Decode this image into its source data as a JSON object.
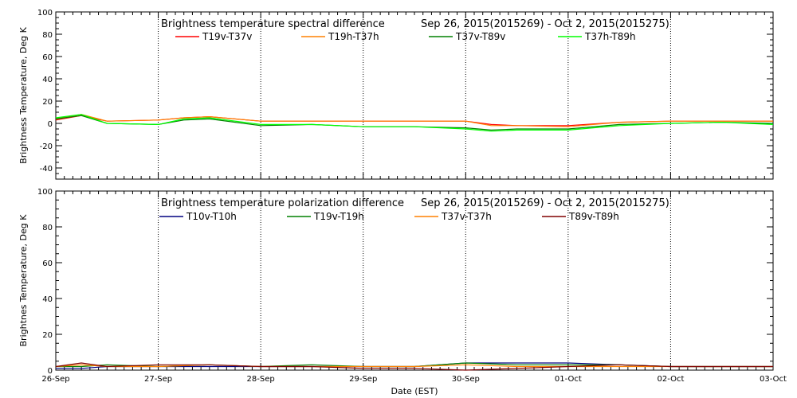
{
  "chart_data": [
    {
      "type": "line",
      "title": "Brightness temperature spectral difference",
      "date_range": "Sep 26, 2015(2015269) - Oct  2, 2015(2015275)",
      "ylabel": "Brightness Temperature, Deg K",
      "xlabel": "",
      "ylim": [
        -50,
        100
      ],
      "yticks": [
        -40,
        -20,
        0,
        20,
        40,
        60,
        80,
        100
      ],
      "xlim": [
        "2015-09-26",
        "2015-10-03"
      ],
      "grid": "vertical dotted lines at each day",
      "legend_placement": "top, below title",
      "series": [
        {
          "name": "T19v-T37v",
          "color": "#ff0000",
          "x": [
            "2015-09-26 00:00",
            "2015-09-26 06:00",
            "2015-09-26 12:00",
            "2015-09-27 00:00",
            "2015-09-27 06:00",
            "2015-09-27 12:00",
            "2015-09-28 00:00",
            "2015-09-28 12:00",
            "2015-09-29 00:00",
            "2015-09-29 12:00",
            "2015-09-30 00:00",
            "2015-09-30 06:00",
            "2015-09-30 12:00",
            "2015-10-01 00:00",
            "2015-10-01 12:00",
            "2015-10-02 00:00",
            "2015-10-02 12:00",
            "2015-10-03 00:00"
          ],
          "values": [
            3,
            7,
            2,
            3,
            5,
            6,
            2,
            2,
            2,
            2,
            2,
            -1,
            -2,
            -2,
            1,
            2,
            2,
            2
          ]
        },
        {
          "name": "T19h-T37h",
          "color": "#ff8000",
          "x": [
            "2015-09-26 00:00",
            "2015-09-26 06:00",
            "2015-09-26 12:00",
            "2015-09-27 00:00",
            "2015-09-27 06:00",
            "2015-09-27 12:00",
            "2015-09-28 00:00",
            "2015-09-28 12:00",
            "2015-09-29 00:00",
            "2015-09-29 12:00",
            "2015-09-30 00:00",
            "2015-09-30 06:00",
            "2015-09-30 12:00",
            "2015-10-01 00:00",
            "2015-10-01 12:00",
            "2015-10-02 00:00",
            "2015-10-02 12:00",
            "2015-10-03 00:00"
          ],
          "values": [
            4,
            8,
            2,
            3,
            5,
            6,
            2,
            2,
            2,
            2,
            2,
            -2,
            -2,
            -3,
            1,
            2,
            2,
            2
          ]
        },
        {
          "name": "T37v-T89v",
          "color": "#008000",
          "x": [
            "2015-09-26 00:00",
            "2015-09-26 06:00",
            "2015-09-26 12:00",
            "2015-09-27 00:00",
            "2015-09-27 06:00",
            "2015-09-27 12:00",
            "2015-09-28 00:00",
            "2015-09-28 12:00",
            "2015-09-29 00:00",
            "2015-09-29 12:00",
            "2015-09-30 00:00",
            "2015-09-30 06:00",
            "2015-09-30 12:00",
            "2015-10-01 00:00",
            "2015-10-01 12:00",
            "2015-10-02 00:00",
            "2015-10-02 12:00",
            "2015-10-03 00:00"
          ],
          "values": [
            4,
            7,
            0,
            -1,
            3,
            4,
            -2,
            -1,
            -3,
            -3,
            -4,
            -6,
            -5,
            -5,
            -1,
            0,
            1,
            0
          ]
        },
        {
          "name": "T37h-T89h",
          "color": "#00ff00",
          "x": [
            "2015-09-26 00:00",
            "2015-09-26 06:00",
            "2015-09-26 12:00",
            "2015-09-27 00:00",
            "2015-09-27 06:00",
            "2015-09-27 12:00",
            "2015-09-28 00:00",
            "2015-09-28 12:00",
            "2015-09-29 00:00",
            "2015-09-29 12:00",
            "2015-09-30 00:00",
            "2015-09-30 06:00",
            "2015-09-30 12:00",
            "2015-10-01 00:00",
            "2015-10-01 12:00",
            "2015-10-02 00:00",
            "2015-10-02 12:00",
            "2015-10-03 00:00"
          ],
          "values": [
            5,
            8,
            0,
            -1,
            4,
            5,
            -1,
            -1,
            -3,
            -3,
            -5,
            -7,
            -6,
            -6,
            -2,
            0,
            1,
            -1
          ]
        }
      ]
    },
    {
      "type": "line",
      "title": "Brightness temperature polarization difference",
      "date_range": "Sep 26, 2015(2015269) - Oct  2, 2015(2015275)",
      "ylabel": "Brightnes Temperature, Deg K",
      "xlabel": "Date (EST)",
      "ylim": [
        0,
        100
      ],
      "yticks": [
        0,
        20,
        40,
        60,
        80,
        100
      ],
      "xlim": [
        "2015-09-26",
        "2015-10-03"
      ],
      "grid": "vertical dotted lines at each day",
      "legend_placement": "top, below title",
      "series": [
        {
          "name": "T10v-T10h",
          "color": "#000080",
          "x": [
            "2015-09-26 00:00",
            "2015-09-26 06:00",
            "2015-09-26 12:00",
            "2015-09-27 00:00",
            "2015-09-27 12:00",
            "2015-09-28 00:00",
            "2015-09-28 12:00",
            "2015-09-29 00:00",
            "2015-09-29 12:00",
            "2015-09-30 00:00",
            "2015-09-30 12:00",
            "2015-10-01 00:00",
            "2015-10-01 12:00",
            "2015-10-02 00:00",
            "2015-10-02 12:00",
            "2015-10-03 00:00"
          ],
          "values": [
            1,
            1,
            2,
            2,
            2,
            2,
            2,
            2,
            2,
            4,
            4,
            4,
            3,
            2,
            2,
            2
          ]
        },
        {
          "name": "T19v-T19h",
          "color": "#008000",
          "x": [
            "2015-09-26 00:00",
            "2015-09-26 06:00",
            "2015-09-26 12:00",
            "2015-09-27 00:00",
            "2015-09-27 12:00",
            "2015-09-28 00:00",
            "2015-09-28 12:00",
            "2015-09-29 00:00",
            "2015-09-29 12:00",
            "2015-09-30 00:00",
            "2015-09-30 12:00",
            "2015-10-01 00:00",
            "2015-10-01 12:00",
            "2015-10-02 00:00",
            "2015-10-02 12:00",
            "2015-10-03 00:00"
          ],
          "values": [
            2,
            2,
            3,
            2,
            3,
            2,
            3,
            2,
            2,
            4,
            3,
            3,
            3,
            2,
            2,
            2
          ]
        },
        {
          "name": "T37v-T37h",
          "color": "#ff8000",
          "x": [
            "2015-09-26 00:00",
            "2015-09-26 06:00",
            "2015-09-26 12:00",
            "2015-09-27 00:00",
            "2015-09-27 12:00",
            "2015-09-28 00:00",
            "2015-09-28 12:00",
            "2015-09-29 00:00",
            "2015-09-29 12:00",
            "2015-09-30 00:00",
            "2015-09-30 12:00",
            "2015-10-01 00:00",
            "2015-10-01 12:00",
            "2015-10-02 00:00",
            "2015-10-02 12:00",
            "2015-10-03 00:00"
          ],
          "values": [
            2,
            3,
            2,
            2,
            3,
            2,
            2,
            2,
            2,
            3,
            2,
            2,
            2,
            2,
            2,
            2
          ]
        },
        {
          "name": "T89v-T89h",
          "color": "#800000",
          "x": [
            "2015-09-26 00:00",
            "2015-09-26 06:00",
            "2015-09-26 12:00",
            "2015-09-27 00:00",
            "2015-09-27 12:00",
            "2015-09-28 00:00",
            "2015-09-28 12:00",
            "2015-09-29 00:00",
            "2015-09-29 12:00",
            "2015-09-30 00:00",
            "2015-09-30 12:00",
            "2015-10-01 00:00",
            "2015-10-01 12:00",
            "2015-10-02 00:00",
            "2015-10-02 12:00",
            "2015-10-03 00:00"
          ],
          "values": [
            2,
            4,
            2,
            3,
            3,
            2,
            2,
            1,
            1,
            0,
            1,
            2,
            3,
            2,
            2,
            2
          ]
        }
      ]
    }
  ],
  "x_tick_labels": [
    "26-Sep",
    "27-Sep",
    "28-Sep",
    "29-Sep",
    "30-Sep",
    "01-Oct",
    "02-Oct",
    "03-Oct"
  ]
}
